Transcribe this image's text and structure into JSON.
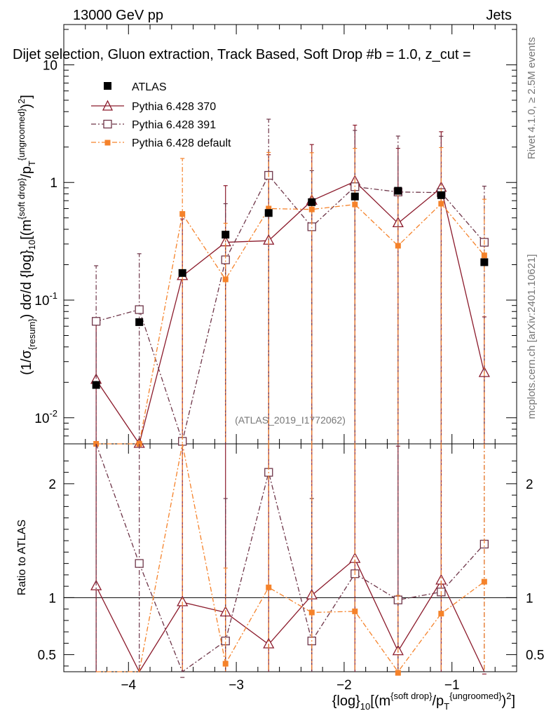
{
  "header": {
    "energy": "13000 GeV pp",
    "process": "Jets",
    "plot_title": "Dijet selection, Gluon extraction, Track Based, Soft Drop #b = 1.0, z_cut =",
    "watermark": "(ATLAS_2019_I1772062)",
    "rivet_label": "Rivet 4.1.0, ≥ 2.5M events",
    "site_label": "mcplots.cern.ch [arXiv:2401.10621]"
  },
  "axes": {
    "ylabel_main": "(1/σ_{resum}) dσ/d {log}_{10}[(m^{soft drop}/p_T^{ungroomed})^2]",
    "ylabel_ratio": "Ratio to ATLAS",
    "xlabel": "{log}_{10}[(m^{soft drop}/p_T^{ungroomed})^2]"
  },
  "legend": {
    "atlas": "ATLAS",
    "p370": "Pythia 6.428 370",
    "p391": "Pythia 6.428 391",
    "pdef": "Pythia 6.428 default"
  },
  "colors": {
    "atlas": "#000000",
    "p370": "#8b1a2b",
    "p391": "#6e3548",
    "pdef": "#f5822a"
  },
  "chart_data": {
    "type": "scatter",
    "x_range": [
      -4.6,
      -0.4
    ],
    "x_ticks": [
      -4,
      -3,
      -2,
      -1
    ],
    "x_tick_labels": [
      "−4",
      "−3",
      "−2",
      "−1"
    ],
    "y_main_range_log": [
      0.006,
      22
    ],
    "y_main_ticks": [
      0.01,
      0.1,
      1,
      10
    ],
    "y_main_tick_labels": [
      "10^{-2}",
      "10^{-1}",
      "1",
      "10"
    ],
    "y_ratio_range": [
      0.35,
      2.35
    ],
    "y_ratio_ticks": [
      0.5,
      1,
      2
    ],
    "y_ratio_tick_labels": [
      "0.5",
      "1",
      "2"
    ],
    "x": [
      -4.3,
      -3.9,
      -3.5,
      -3.1,
      -2.7,
      -2.3,
      -1.9,
      -1.5,
      -1.1,
      -0.7
    ],
    "series": [
      {
        "name": "ATLAS",
        "key": "atlas",
        "values": [
          0.019,
          0.065,
          0.17,
          0.36,
          0.55,
          0.68,
          0.76,
          0.85,
          0.78,
          0.21
        ],
        "err_up": [
          0.0,
          0.0,
          0.0,
          0.0,
          0.0,
          0.0,
          0.0,
          0.0,
          0.0,
          0.0
        ],
        "err_dn": [
          0.0,
          0.0,
          0.0,
          0.0,
          0.0,
          0.0,
          0.0,
          0.0,
          0.0,
          0.0
        ]
      },
      {
        "name": "Pythia 6.428 370",
        "key": "p370",
        "values": [
          0.021,
          0.006,
          0.16,
          0.31,
          0.32,
          0.7,
          1.02,
          0.45,
          0.9,
          0.024
        ],
        "err_up": [
          0.042,
          0.0,
          0.33,
          0.63,
          1.4,
          1.4,
          2.05,
          1.5,
          1.8,
          0.048
        ],
        "err_dn": [
          0.0,
          0.0,
          0.0,
          0.0,
          0.0,
          0.0,
          0.0,
          0.0,
          0.0,
          0.0
        ]
      },
      {
        "name": "Pythia 6.428 391",
        "key": "p391",
        "values": [
          0.066,
          0.083,
          0.0063,
          0.22,
          1.15,
          0.42,
          0.92,
          0.83,
          0.82,
          0.31
        ],
        "err_up": [
          0.13,
          0.165,
          0.0,
          0.44,
          2.3,
          0.84,
          1.85,
          1.65,
          1.65,
          0.62
        ],
        "err_dn": [
          0.0,
          0.0,
          0.0,
          0.0,
          0.0,
          0.0,
          0.0,
          0.0,
          0.0,
          0.0
        ]
      },
      {
        "name": "Pythia 6.428 default",
        "key": "pdef",
        "values": [
          0.006,
          0.006,
          0.54,
          0.15,
          0.6,
          0.59,
          0.65,
          0.29,
          0.66,
          0.24
        ],
        "err_up": [
          0.0,
          0.0,
          1.06,
          0.3,
          1.2,
          1.2,
          1.3,
          0.58,
          1.32,
          0.48
        ],
        "err_dn": [
          0.0,
          0.0,
          0.0,
          0.0,
          0.0,
          0.0,
          0.0,
          0.0,
          0.0,
          0.0
        ]
      }
    ],
    "ratio": {
      "p370": {
        "values": [
          1.1,
          0.25,
          0.96,
          0.87,
          0.59,
          1.02,
          1.34,
          0.53,
          1.15,
          0.11
        ],
        "err_up": [
          2.2,
          0.0,
          1.93,
          1.75,
          2.5,
          2.05,
          2.7,
          1.8,
          2.3,
          0.22
        ]
      },
      "p391": {
        "values": [
          3.0,
          1.3,
          0.1,
          0.62,
          2.1,
          0.62,
          1.21,
          0.98,
          1.05,
          1.47
        ],
        "err_up": [
          3.5,
          2.6,
          0.2,
          1.25,
          4.2,
          1.25,
          2.42,
          1.96,
          2.1,
          2.94
        ]
      },
      "pdef": {
        "values": [
          0.3,
          0.1,
          3.2,
          0.42,
          1.09,
          0.87,
          0.88,
          0.34,
          0.86,
          1.14
        ],
        "err_up": [
          0.0,
          0.0,
          6.4,
          0.84,
          2.18,
          1.74,
          1.76,
          0.68,
          1.72,
          2.28
        ]
      }
    }
  }
}
